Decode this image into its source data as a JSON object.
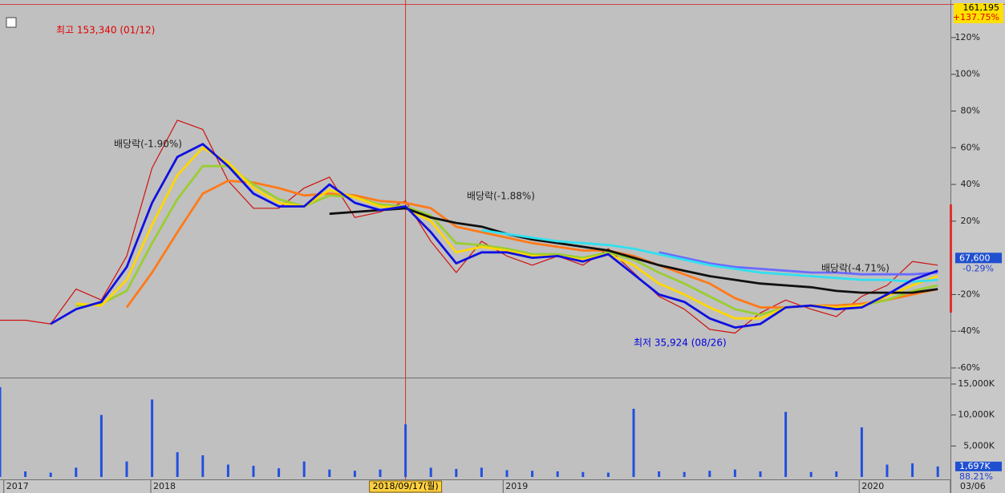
{
  "chart_data": {
    "type": "line",
    "x": [
      0,
      20,
      40,
      60,
      80,
      100,
      120,
      140,
      160,
      180,
      200,
      220,
      240,
      260,
      280,
      300,
      320,
      340,
      360,
      380,
      400,
      420,
      440,
      460,
      480,
      500,
      520,
      540,
      560,
      580,
      600,
      620,
      640,
      660,
      680,
      700,
      720,
      740
    ],
    "xlim": [
      0,
      750
    ],
    "xticks": [
      {
        "value": 3,
        "label": "2017"
      },
      {
        "value": 119,
        "label": "2018"
      },
      {
        "value": 397,
        "label": "2019"
      },
      {
        "value": 678,
        "label": "2020"
      },
      {
        "value": 750,
        "label": "03/06"
      }
    ],
    "ylim": [
      -64.8,
      138.3
    ],
    "yticks": [
      {
        "value": 120,
        "label": "120%"
      },
      {
        "value": 100,
        "label": "100%"
      },
      {
        "value": 80,
        "label": "80%"
      },
      {
        "value": 60,
        "label": "60%"
      },
      {
        "value": 40,
        "label": "40%"
      },
      {
        "value": 20,
        "label": "20%"
      },
      {
        "value": -20,
        "label": "-20%"
      },
      {
        "value": -40,
        "label": "-40%"
      },
      {
        "value": -60,
        "label": "-60%"
      }
    ],
    "series": [
      {
        "color": "#d01010",
        "values": [
          -34,
          -34,
          -36,
          -17,
          -23,
          1,
          49,
          75,
          70,
          42,
          27,
          27,
          38,
          44,
          22,
          25,
          31,
          9,
          -8,
          9,
          1,
          -4,
          1,
          -4,
          5,
          -8,
          -21,
          -28,
          -39,
          -41,
          -30,
          -23,
          -28,
          -32,
          -21,
          -15,
          -2,
          -4
        ]
      },
      {
        "color": "#ff7a1a",
        "values": [
          null,
          null,
          null,
          null,
          null,
          -27,
          -8,
          14,
          35,
          42,
          41,
          38,
          34,
          35,
          34,
          31,
          30,
          27,
          17,
          14,
          11,
          8,
          6,
          4,
          4,
          1,
          -4,
          -9,
          -14,
          -22,
          -27,
          -27,
          -26,
          -26,
          -25,
          -23,
          -20,
          -17
        ]
      },
      {
        "color": "#9acd32",
        "values": [
          null,
          null,
          null,
          -26,
          -25,
          -18,
          8,
          32,
          50,
          50,
          40,
          32,
          28,
          34,
          33,
          29,
          28,
          23,
          8,
          7,
          5,
          2,
          2,
          0,
          3,
          -1,
          -8,
          -14,
          -21,
          -28,
          -31,
          -27,
          -26,
          -27,
          -26,
          -23,
          -18,
          -15
        ]
      },
      {
        "color": "#ffd700",
        "values": [
          null,
          null,
          null,
          -25,
          -26,
          -12,
          18,
          45,
          60,
          52,
          38,
          30,
          28,
          37,
          33,
          28,
          27,
          20,
          3,
          6,
          4,
          1,
          1,
          -1,
          2,
          -4,
          -14,
          -20,
          -27,
          -33,
          -33,
          -27,
          -26,
          -27,
          -26,
          -21,
          -15,
          -10
        ]
      },
      {
        "color": "#101010",
        "values": [
          null,
          null,
          null,
          null,
          null,
          null,
          null,
          null,
          null,
          null,
          null,
          null,
          null,
          24,
          25,
          26,
          27,
          22,
          19,
          17,
          13,
          10,
          8,
          6,
          4,
          0,
          -4,
          -7,
          -10,
          -12,
          -14,
          -15,
          -16,
          -18,
          -19,
          -19,
          -19,
          -17
        ]
      },
      {
        "color": "#6a6aff",
        "values": [
          null,
          null,
          null,
          null,
          null,
          null,
          null,
          null,
          null,
          null,
          null,
          null,
          null,
          null,
          null,
          null,
          null,
          null,
          null,
          null,
          null,
          null,
          null,
          null,
          null,
          null,
          3,
          0,
          -3,
          -5,
          -6,
          -7,
          -8,
          -8,
          -9,
          -9,
          -9,
          -8
        ]
      },
      {
        "color": "#30e0f0",
        "values": [
          null,
          null,
          null,
          null,
          null,
          null,
          null,
          null,
          null,
          null,
          null,
          null,
          null,
          null,
          null,
          null,
          null,
          null,
          null,
          15,
          13,
          11,
          9,
          8,
          7,
          5,
          2,
          -1,
          -4,
          -6,
          -8,
          -9,
          -10,
          -11,
          -12,
          -12,
          -13,
          -12
        ]
      },
      {
        "color": "#1010e0",
        "values": [
          null,
          null,
          -36,
          -28,
          -24,
          -5,
          30,
          55,
          62,
          50,
          35,
          28,
          28,
          40,
          30,
          26,
          28,
          14,
          -3,
          3,
          3,
          0,
          1,
          -2,
          2,
          -9,
          -20,
          -24,
          -33,
          -38,
          -36,
          -27,
          -26,
          -28,
          -27,
          -20,
          -12,
          -7
        ]
      }
    ],
    "volume": {
      "color": "#2050e0",
      "values": [
        14500,
        900,
        700,
        1500,
        10000,
        2500,
        12500,
        4000,
        3500,
        2000,
        1800,
        1400,
        2500,
        1200,
        1000,
        1200,
        8500,
        1500,
        1300,
        1500,
        1100,
        1000,
        900,
        800,
        700,
        11000,
        900,
        800,
        1000,
        1200,
        900,
        10500,
        800,
        900,
        8000,
        2000,
        2200,
        1697
      ],
      "ylim": [
        0,
        15780
      ],
      "yticks": [
        {
          "value": 15000,
          "label": "15,000K"
        },
        {
          "value": 10000,
          "label": "10,000K"
        },
        {
          "value": 5000,
          "label": "5,000K"
        }
      ],
      "current": {
        "value": 1697,
        "label": "1,697K"
      },
      "ratio": "88.21%"
    },
    "crosshair": {
      "x": 320,
      "label": "2018/09/17(월)"
    },
    "header": {
      "price": "161,195",
      "change": "+137.75%"
    },
    "current": {
      "value": -0.29,
      "price": "67,600",
      "change": "-0.29%"
    },
    "annotations": [
      {
        "text": "최고 153,340 (01/12)",
        "color": "#e00000"
      },
      {
        "text": "배당락(-1.90%)",
        "color": "#202020"
      },
      {
        "text": "배당락(-1.88%)",
        "color": "#202020"
      },
      {
        "text": "배당락(-4.71%)",
        "color": "#202020"
      },
      {
        "text": "최저 35,924 (08/26)",
        "color": "#0000e0"
      }
    ]
  }
}
